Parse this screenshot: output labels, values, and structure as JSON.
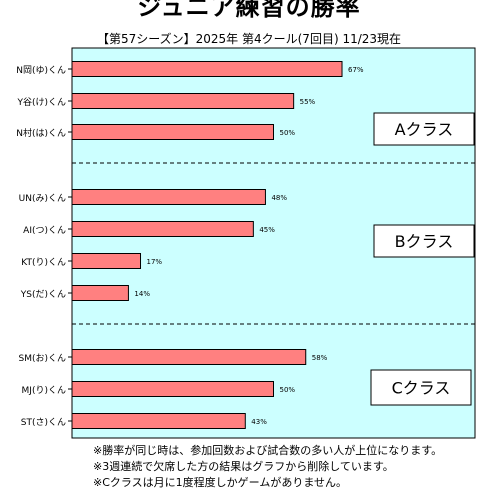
{
  "title": "ジュニア練習の勝率",
  "subtitle": "【第57シーズン】2025年 第4クール(7回目) 11/23現在",
  "footnotes": [
    "※勝率が同じ時は、参加回数および試合数の多い人が上位になります。",
    "※3週連続で欠席した方の結果はグラフから削除しています。",
    "※Cクラスは月に1度程度しかゲームがありません。"
  ],
  "colors": {
    "plot_background": "#ccffff",
    "bar_fill": "#ff8080",
    "bar_stroke": "#000000"
  },
  "chart_data": {
    "type": "bar",
    "orientation": "horizontal",
    "title": "ジュニア練習の勝率",
    "value_format": "percent",
    "xlim": [
      0,
      100
    ],
    "grid": false,
    "groups": [
      {
        "label": "Aクラス",
        "categories": [
          "N岡(ゆ)くん",
          "Y谷(け)くん",
          "N村(は)くん"
        ],
        "values": [
          67,
          55,
          50
        ]
      },
      {
        "label": "Bクラス",
        "categories": [
          "UN(み)くん",
          "AI(つ)くん",
          "KT(り)くん",
          "YS(だ)くん"
        ],
        "values": [
          48,
          45,
          17,
          14
        ]
      },
      {
        "label": "Cクラス",
        "categories": [
          "SM(お)くん",
          "MJ(り)くん",
          "ST(さ)くん"
        ],
        "values": [
          58,
          50,
          43
        ]
      }
    ]
  }
}
